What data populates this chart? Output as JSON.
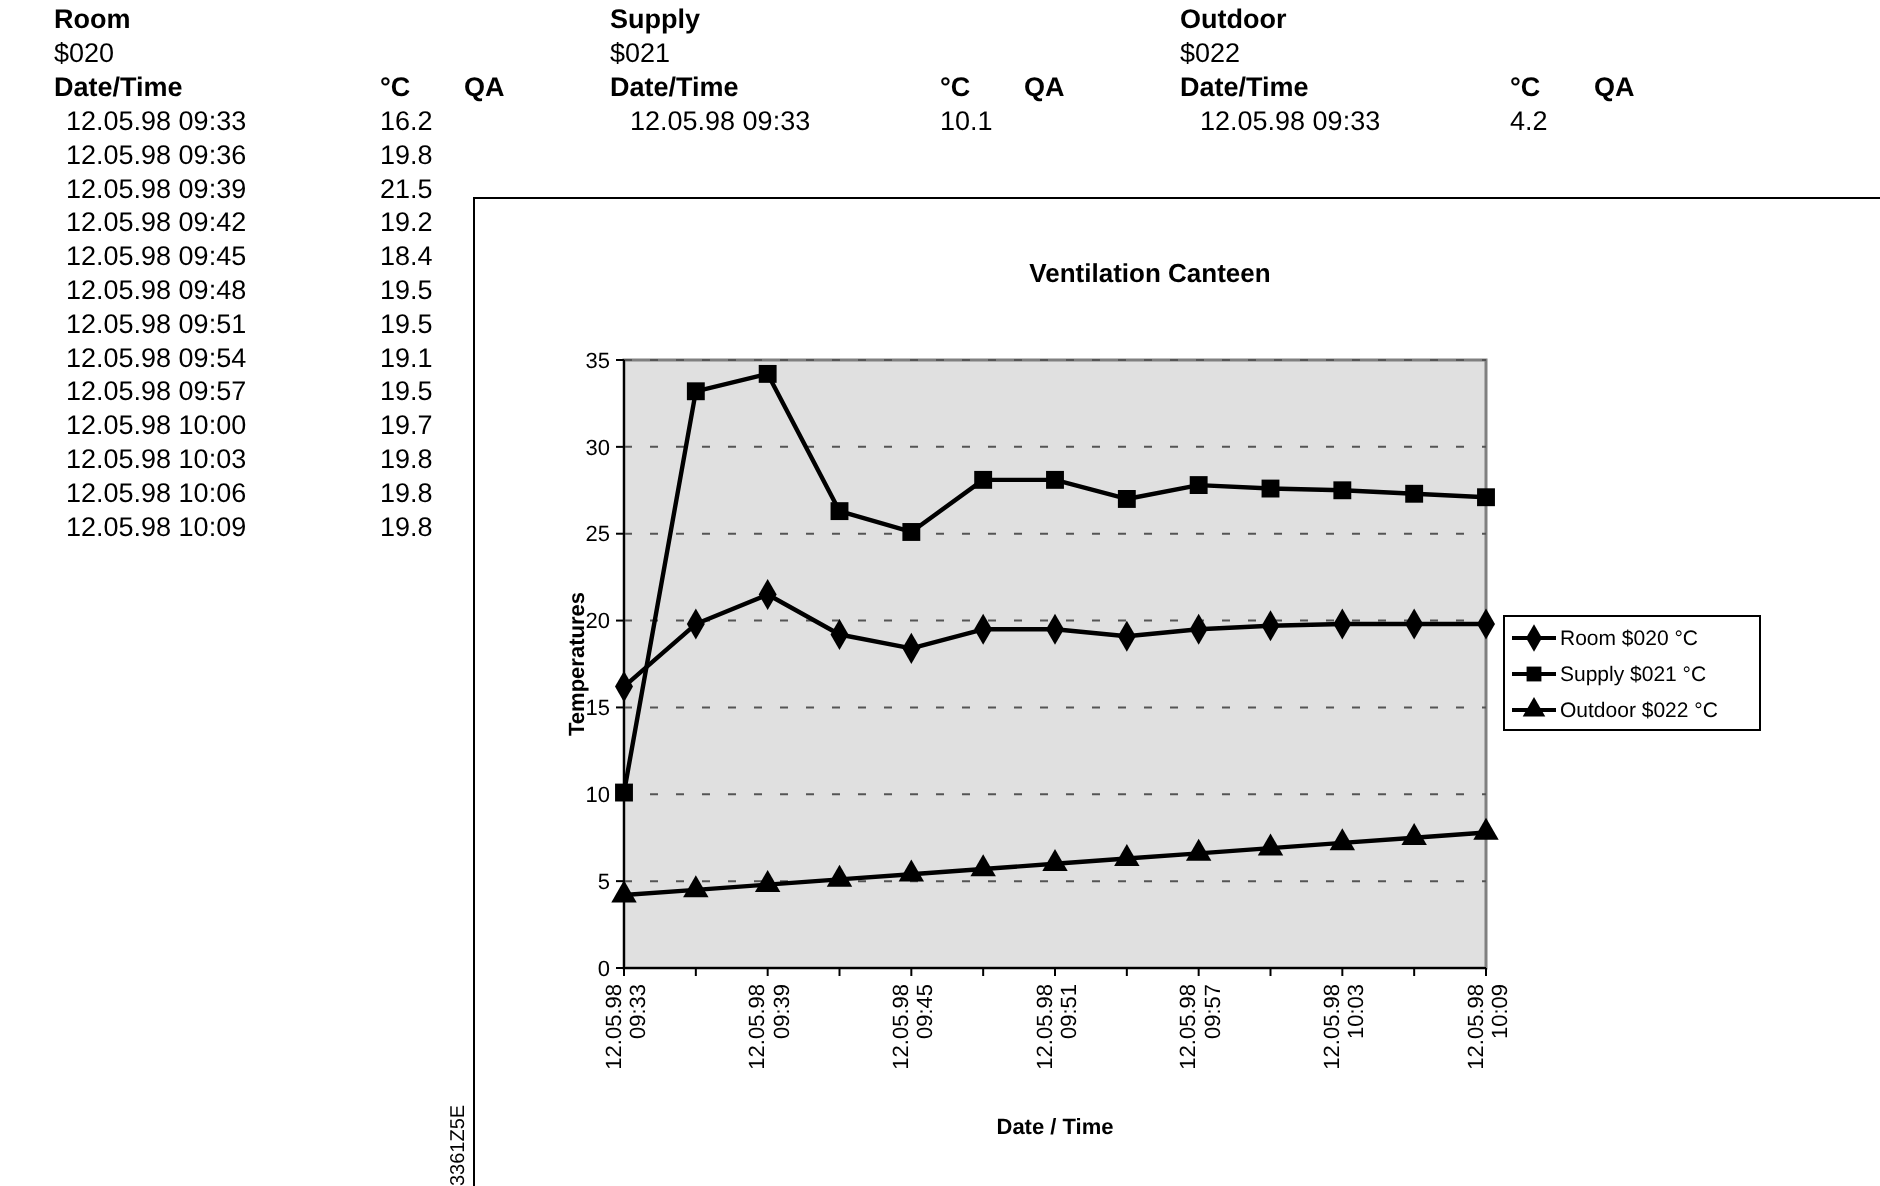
{
  "chart_data": [
    {
      "type": "other",
      "annotations": [
        "Room\t\t\tSupply\t\t\tOutdoor",
        "$020\t\t\t$021\t\t\t$022",
        "Date/Time\t°C\tQA\tDate/Time\t°C\tQA\tDate/Time\t°C\tQA",
        "12.05.98 09:33\t16.2\t\t12.05.98 09:33\t10.1\t\t12.05.98 09:33\t4.2",
        "12.05.98 09:36\t19.8",
        "12.05.98 09:39\t21.5",
        "12.05.98 09:42\t19.2",
        "12.05.98 09:45\t18.4",
        "12.05.98 09:48\t19.5",
        "12.05.98 09:51\t19.5",
        "12.05.98 09:54\t19.1",
        "12.05.98 09:57\t19.5",
        "12.05.98 10:00\t19.7",
        "12.05.98 10:03\t19.8",
        "12.05.98 10:06\t19.8",
        "12.05.98 10:09\t19.8"
      ]
    },
    {
      "type": "line",
      "title": "Ventilation Canteen",
      "xlabel": "Date / Time",
      "ylabel": "Temperatures",
      "categories": [
        "12.05.98 09:33",
        null,
        "12.05.98 09:39",
        null,
        "12.05.98 09:45",
        null,
        "12.05.98 09:51",
        null,
        "12.05.98 09:57",
        null,
        "12.05.98 10:03",
        null,
        "12.05.98 10:09"
      ],
      "series": [
        {
          "name": "Room $020 °C",
          "color": "#000000",
          "marker": "diamond",
          "values": [
            16.2,
            19.8,
            21.5,
            19.2,
            18.4,
            19.5,
            19.5,
            19.1,
            19.5,
            19.7,
            19.8,
            19.8,
            19.8
          ]
        },
        {
          "name": "Supply $021 °C",
          "color": "#000000",
          "marker": "square",
          "values": [
            10.1,
            33.2,
            34.2,
            26.3,
            25.1,
            28.1,
            28.1,
            27.0,
            27.8,
            27.6,
            27.5,
            27.3,
            27.1
          ]
        },
        {
          "name": "Outdoor $022 °C",
          "color": "#000000",
          "marker": "triangle",
          "values": [
            4.2,
            4.5,
            4.8,
            5.1,
            5.4,
            5.7,
            6.0,
            6.3,
            6.6,
            6.9,
            7.2,
            7.5,
            7.8
          ]
        }
      ],
      "ylim": [
        0,
        35
      ],
      "yticks": [
        0,
        5,
        10,
        15,
        20,
        25,
        30,
        35
      ],
      "grid": "y",
      "legend": "right",
      "line_style": "solid",
      "annotations": [
        "3361Z5E"
      ]
    }
  ]
}
